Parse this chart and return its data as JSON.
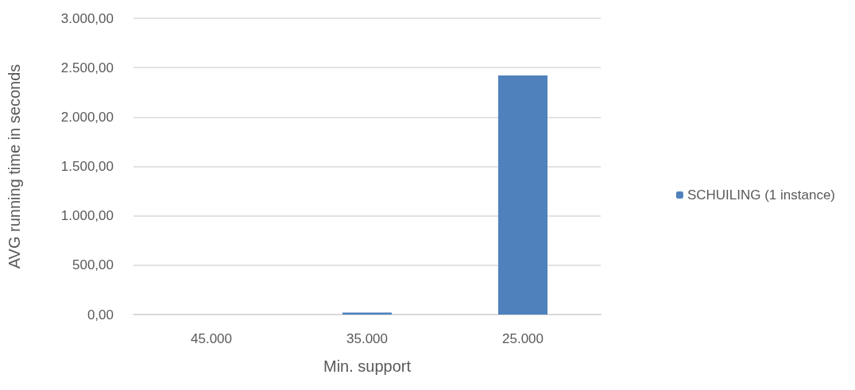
{
  "chart_data": {
    "type": "bar",
    "xlabel": "Min. support",
    "ylabel": "AVG running time in seconds",
    "categories": [
      "45.000",
      "35.000",
      "25.000"
    ],
    "series": [
      {
        "name": "SCHUILING (1 instance)",
        "color": "#4f81bd",
        "values": [
          0,
          20,
          2420
        ]
      }
    ],
    "ylim": [
      0,
      3000
    ],
    "yticks": [
      {
        "value": 0,
        "label": "0,00"
      },
      {
        "value": 500,
        "label": "500,00"
      },
      {
        "value": 1000,
        "label": "1.000,00"
      },
      {
        "value": 1500,
        "label": "1.500,00"
      },
      {
        "value": 2000,
        "label": "2.000,00"
      },
      {
        "value": 2500,
        "label": "2.500,00"
      },
      {
        "value": 3000,
        "label": "3.000,00"
      }
    ],
    "grid": "y",
    "legend": "right"
  }
}
